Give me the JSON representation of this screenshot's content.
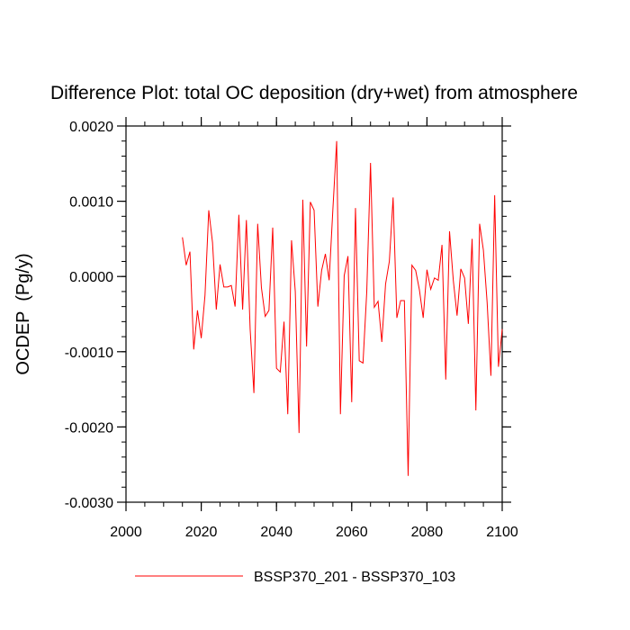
{
  "chart_data": {
    "type": "line",
    "title": "Difference Plot: total OC deposition (dry+wet) from atmosphere",
    "xlabel": "",
    "ylabel": "OCDEP  (Pg/y)",
    "xlim": [
      2000,
      2100
    ],
    "ylim": [
      -0.003,
      0.002
    ],
    "x_ticks": [
      2000,
      2020,
      2040,
      2060,
      2080,
      2100
    ],
    "x_tick_labels": [
      "2000",
      "2020",
      "2040",
      "2060",
      "2080",
      "2100"
    ],
    "y_ticks": [
      -0.003,
      -0.002,
      -0.001,
      0.0,
      0.001,
      0.002
    ],
    "y_tick_labels": [
      "-0.0030",
      "-0.0020",
      "-0.0010",
      "0.0000",
      "0.0010",
      "0.0020"
    ],
    "series": [
      {
        "name": "BSSP370_201 - BSSP370_103",
        "color": "#ff0000",
        "x": [
          2015,
          2016,
          2017,
          2018,
          2019,
          2020,
          2021,
          2022,
          2023,
          2024,
          2025,
          2026,
          2027,
          2028,
          2029,
          2030,
          2031,
          2032,
          2033,
          2034,
          2035,
          2036,
          2037,
          2038,
          2039,
          2040,
          2041,
          2042,
          2043,
          2044,
          2045,
          2046,
          2047,
          2048,
          2049,
          2050,
          2051,
          2052,
          2053,
          2054,
          2055,
          2056,
          2057,
          2058,
          2059,
          2060,
          2061,
          2062,
          2063,
          2064,
          2065,
          2066,
          2067,
          2068,
          2069,
          2070,
          2071,
          2072,
          2073,
          2074,
          2075,
          2076,
          2077,
          2078,
          2079,
          2080,
          2081,
          2082,
          2083,
          2084,
          2085,
          2086,
          2087,
          2088,
          2089,
          2090,
          2091,
          2092,
          2093,
          2094,
          2095,
          2096,
          2097,
          2098,
          2099,
          2100
        ],
        "y": [
          0.00052,
          0.00015,
          0.00033,
          -0.00097,
          -0.00045,
          -0.00082,
          -0.00025,
          0.00088,
          0.00045,
          -0.00044,
          0.00016,
          -0.00014,
          -0.00014,
          -0.00012,
          -0.0004,
          0.00082,
          -0.00044,
          0.00075,
          -0.0007,
          -0.00155,
          0.0007,
          -0.00015,
          -0.00053,
          -0.00045,
          0.00065,
          -0.00122,
          -0.00127,
          -0.0006,
          -0.00183,
          0.00048,
          -0.0002,
          -0.00208,
          0.00102,
          -0.00093,
          0.00099,
          0.00088,
          -0.0004,
          8e-05,
          0.0003,
          -5e-05,
          0.0009,
          0.0018,
          -0.00183,
          1e-05,
          0.00027,
          -0.00167,
          0.00091,
          -0.00112,
          -0.00115,
          -0.0002,
          0.00151,
          -0.00041,
          -0.00033,
          -0.00087,
          -0.0001,
          0.0002,
          0.00105,
          -0.00055,
          -0.00032,
          -0.00032,
          -0.00265,
          0.00015,
          8e-05,
          -0.00018,
          -0.00055,
          9e-05,
          -0.00017,
          -2e-05,
          -5e-05,
          0.00042,
          -0.00137,
          0.0006,
          -5e-05,
          -0.00052,
          0.0001,
          -2e-05,
          -0.00063,
          0.0005,
          -0.00178,
          0.0007,
          0.00035,
          -0.00035,
          -0.00132,
          0.00108,
          -0.0012,
          -0.0007
        ]
      }
    ],
    "legend": {
      "position": "bottom",
      "entries": [
        "BSSP370_201 - BSSP370_103"
      ]
    }
  }
}
